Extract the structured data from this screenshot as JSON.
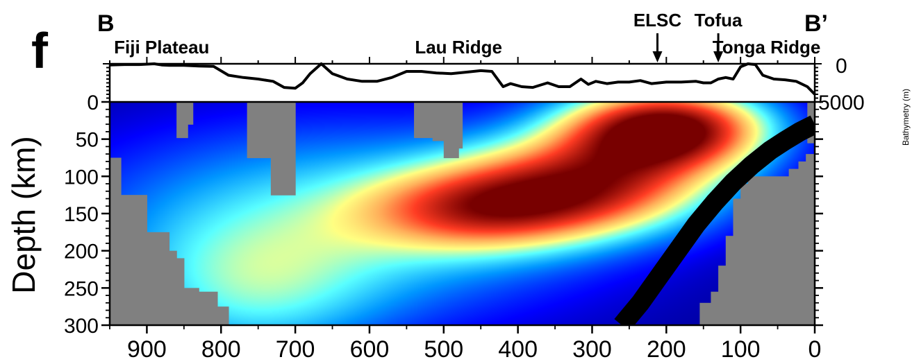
{
  "panel_letter": "f",
  "section_start": "B",
  "section_end": "B’",
  "colors": {
    "no_data": "#808080",
    "slab": "#000000",
    "colormap": [
      "#000080",
      "#0000ff",
      "#00aaff",
      "#66ffff",
      "#ffff80",
      "#ffaa55",
      "#ff3322",
      "#7a0000"
    ]
  },
  "chart_data": [
    {
      "type": "line",
      "title": "",
      "ylabel": "Bathymetry (m)",
      "x_direction": "decreasing",
      "xlim": [
        950,
        0
      ],
      "ylim": [
        0,
        5000
      ],
      "y_ticks": [
        "0",
        "5000"
      ],
      "series": [
        {
          "x": [
            950,
            930,
            910,
            890,
            880,
            870,
            850,
            830,
            810,
            790,
            770,
            750,
            730,
            715,
            700,
            690,
            680,
            665,
            650,
            630,
            610,
            590,
            570,
            550,
            530,
            510,
            490,
            470,
            450,
            435,
            420,
            410,
            395,
            380,
            360,
            345,
            330,
            315,
            305,
            295,
            280,
            265,
            250,
            235,
            220,
            200,
            180,
            160,
            150,
            140,
            130,
            120,
            110,
            100,
            90,
            80,
            70,
            55,
            40,
            25,
            10,
            0
          ],
          "y": [
            150,
            100,
            100,
            0,
            150,
            200,
            200,
            300,
            350,
            1500,
            1800,
            2000,
            2300,
            3100,
            3200,
            2500,
            1300,
            0,
            1300,
            2000,
            2300,
            2300,
            1800,
            1000,
            1000,
            1200,
            1300,
            1100,
            900,
            1000,
            3000,
            2600,
            3000,
            3100,
            2500,
            3000,
            3000,
            2000,
            2700,
            2300,
            2600,
            2400,
            2400,
            2200,
            2600,
            2400,
            2400,
            2300,
            2500,
            2500,
            2000,
            1800,
            2000,
            400,
            0,
            100,
            1500,
            2000,
            2100,
            2300,
            3000,
            4000
          ]
        }
      ],
      "annotations": [
        {
          "text": "Fiji Plateau",
          "x": 880
        },
        {
          "text": "Lau Ridge",
          "x": 480
        },
        {
          "text": "ELSC",
          "x": 212,
          "arrow": true
        },
        {
          "text": "Tofua",
          "x": 130,
          "arrow": true
        },
        {
          "text": "Tonga Ridge",
          "x": 65
        }
      ]
    },
    {
      "type": "heatmap",
      "title": "",
      "xlabel": "",
      "ylabel": "Depth (km)",
      "x_direction": "decreasing",
      "y_direction": "downward",
      "xlim": [
        950,
        0
      ],
      "ylim": [
        0,
        300
      ],
      "x_ticks": [
        "900",
        "800",
        "700",
        "600",
        "500",
        "400",
        "300",
        "200",
        "100",
        "0"
      ],
      "y_ticks": [
        "0",
        "50",
        "100",
        "150",
        "200",
        "250",
        "300"
      ],
      "anomalies": [
        {
          "x": 200,
          "depth": 35,
          "sx": 95,
          "sy": 38,
          "amp": 1.0
        },
        {
          "x": 300,
          "depth": 110,
          "sx": 120,
          "sy": 45,
          "amp": 0.68
        },
        {
          "x": 450,
          "depth": 145,
          "sx": 110,
          "sy": 38,
          "amp": 0.5
        },
        {
          "x": 640,
          "depth": 160,
          "sx": 250,
          "sy": 95,
          "amp": 0.34
        },
        {
          "x": 760,
          "depth": 260,
          "sx": 120,
          "sy": 70,
          "amp": 0.24
        }
      ],
      "no_data_regions": [
        {
          "x0": 950,
          "x1": 935,
          "d0": 75,
          "d1": 300
        },
        {
          "x0": 935,
          "x1": 900,
          "d0": 125,
          "d1": 300
        },
        {
          "x0": 900,
          "x1": 870,
          "d0": 175,
          "d1": 300
        },
        {
          "x0": 870,
          "x1": 860,
          "d0": 200,
          "d1": 300
        },
        {
          "x0": 860,
          "x1": 850,
          "d0": 210,
          "d1": 300
        },
        {
          "x0": 850,
          "x1": 830,
          "d0": 250,
          "d1": 300
        },
        {
          "x0": 830,
          "x1": 805,
          "d0": 255,
          "d1": 300
        },
        {
          "x0": 805,
          "x1": 790,
          "d0": 275,
          "d1": 300
        },
        {
          "x0": 860,
          "x1": 845,
          "d0": 0,
          "d1": 48
        },
        {
          "x0": 845,
          "x1": 838,
          "d0": 0,
          "d1": 30
        },
        {
          "x0": 765,
          "x1": 733,
          "d0": 0,
          "d1": 75
        },
        {
          "x0": 733,
          "x1": 700,
          "d0": 0,
          "d1": 125
        },
        {
          "x0": 540,
          "x1": 515,
          "d0": 0,
          "d1": 48
        },
        {
          "x0": 515,
          "x1": 500,
          "d0": 0,
          "d1": 52
        },
        {
          "x0": 500,
          "x1": 480,
          "d0": 0,
          "d1": 75
        },
        {
          "x0": 480,
          "x1": 475,
          "d0": 0,
          "d1": 62
        },
        {
          "x0": 155,
          "x1": 140,
          "d0": 270,
          "d1": 300
        },
        {
          "x0": 140,
          "x1": 130,
          "d0": 255,
          "d1": 300
        },
        {
          "x0": 130,
          "x1": 120,
          "d0": 220,
          "d1": 300
        },
        {
          "x0": 120,
          "x1": 110,
          "d0": 180,
          "d1": 300
        },
        {
          "x0": 110,
          "x1": 100,
          "d0": 130,
          "d1": 300
        },
        {
          "x0": 100,
          "x1": 90,
          "d0": 110,
          "d1": 300
        },
        {
          "x0": 90,
          "x1": 65,
          "d0": 100,
          "d1": 300
        },
        {
          "x0": 65,
          "x1": 35,
          "d0": 100,
          "d1": 300
        },
        {
          "x0": 35,
          "x1": 22,
          "d0": 90,
          "d1": 300
        },
        {
          "x0": 22,
          "x1": 12,
          "d0": 80,
          "d1": 300
        },
        {
          "x0": 12,
          "x1": 0,
          "d0": 70,
          "d1": 300
        },
        {
          "x0": 10,
          "x1": 0,
          "d0": 0,
          "d1": 55
        }
      ],
      "slab": {
        "x": [
          260,
          235,
          210,
          185,
          160,
          135,
          110,
          85,
          60,
          40,
          20,
          0
        ],
        "depth": [
          300,
          270,
          235,
          200,
          165,
          135,
          108,
          85,
          65,
          52,
          40,
          30
        ]
      }
    }
  ]
}
